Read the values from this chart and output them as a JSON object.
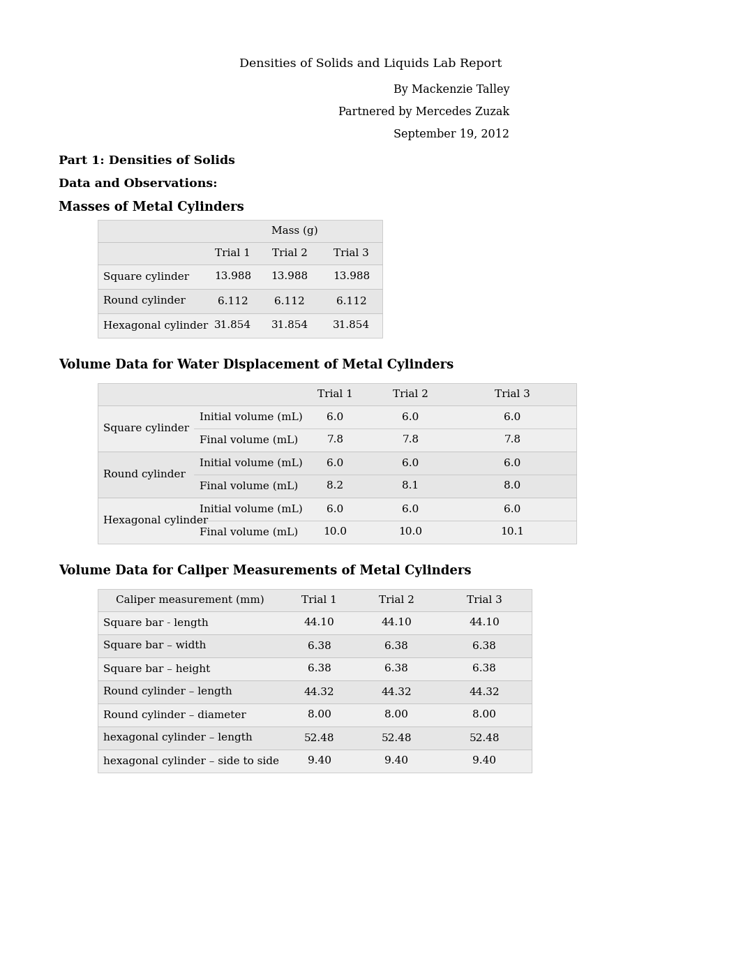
{
  "title": "Densities of Solids and Liquids Lab Report",
  "author": "By Mackenzie Talley",
  "partner": "Partnered by Mercedes Zuzak",
  "date": "September 19, 2012",
  "section1": "Part 1: Densities of Solids",
  "section2": "Data and Observations:",
  "table1_title": "Masses of Metal Cylinders",
  "table1_header_mass": "Mass (g)",
  "table1_subheaders": [
    "Trial 1",
    "Trial 2",
    "Trial 3"
  ],
  "table1_rows": [
    [
      "Square cylinder",
      "13.988",
      "13.988",
      "13.988"
    ],
    [
      "Round cylinder",
      "6.112",
      "6.112",
      "6.112"
    ],
    [
      "Hexagonal cylinder",
      "31.854",
      "31.854",
      "31.854"
    ]
  ],
  "table2_title": "Volume Data for Water Displacement of Metal Cylinders",
  "table2_subheaders": [
    "Trial 1",
    "Trial 2",
    "Trial 3"
  ],
  "table2_rows": [
    [
      "Square cylinder",
      "Initial volume (mL)",
      "6.0",
      "6.0",
      "6.0"
    ],
    [
      "Square cylinder",
      "Final volume (mL)",
      "7.8",
      "7.8",
      "7.8"
    ],
    [
      "Round cylinder",
      "Initial volume (mL)",
      "6.0",
      "6.0",
      "6.0"
    ],
    [
      "Round cylinder",
      "Final volume (mL)",
      "8.2",
      "8.1",
      "8.0"
    ],
    [
      "Hexagonal cylinder",
      "Initial volume (mL)",
      "6.0",
      "6.0",
      "6.0"
    ],
    [
      "Hexagonal cylinder",
      "Final volume (mL)",
      "10.0",
      "10.0",
      "10.1"
    ]
  ],
  "table3_title": "Volume Data for Caliper Measurements of Metal Cylinders",
  "table3_header": "Caliper measurement (mm)",
  "table3_subheaders": [
    "Trial 1",
    "Trial 2",
    "Trial 3"
  ],
  "table3_rows": [
    [
      "Square bar - length",
      "44.10",
      "44.10",
      "44.10"
    ],
    [
      "Square bar – width",
      "6.38",
      "6.38",
      "6.38"
    ],
    [
      "Square bar – height",
      "6.38",
      "6.38",
      "6.38"
    ],
    [
      "Round cylinder – length",
      "44.32",
      "44.32",
      "44.32"
    ],
    [
      "Round cylinder – diameter",
      "8.00",
      "8.00",
      "8.00"
    ],
    [
      "hexagonal cylinder – length",
      "52.48",
      "52.48",
      "52.48"
    ],
    [
      "hexagonal cylinder – side to side",
      "9.40",
      "9.40",
      "9.40"
    ]
  ],
  "bg_color": "#ffffff",
  "text_color": "#000000",
  "table_header_bg": "#e8e8e8",
  "table_row_odd": "#efefef",
  "table_row_even": "#e6e6e6",
  "table_border": "#bbbbbb"
}
